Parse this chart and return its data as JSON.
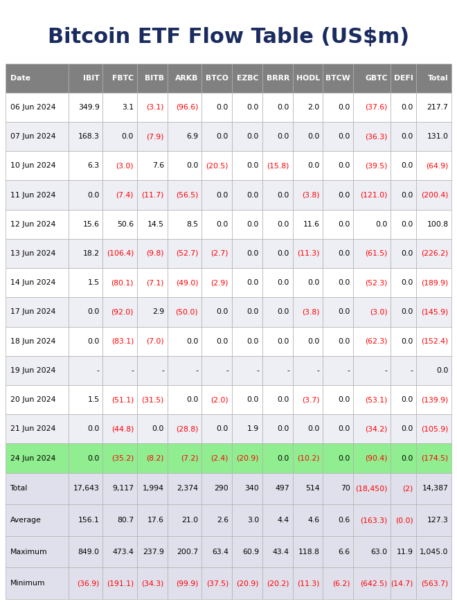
{
  "title": "Bitcoin ETF Flow Table (US$m)",
  "columns": [
    "Date",
    "IBIT",
    "FBTC",
    "BITB",
    "ARKB",
    "BTCO",
    "EZBC",
    "BRRR",
    "HODL",
    "BTCW",
    "GBTC",
    "DEFI",
    "Total"
  ],
  "rows": [
    [
      "06 Jun 2024",
      "349.9",
      "3.1",
      "(3.1)",
      "(96.6)",
      "0.0",
      "0.0",
      "0.0",
      "2.0",
      "0.0",
      "(37.6)",
      "0.0",
      "217.7"
    ],
    [
      "07 Jun 2024",
      "168.3",
      "0.0",
      "(7.9)",
      "6.9",
      "0.0",
      "0.0",
      "0.0",
      "0.0",
      "0.0",
      "(36.3)",
      "0.0",
      "131.0"
    ],
    [
      "10 Jun 2024",
      "6.3",
      "(3.0)",
      "7.6",
      "0.0",
      "(20.5)",
      "0.0",
      "(15.8)",
      "0.0",
      "0.0",
      "(39.5)",
      "0.0",
      "(64.9)"
    ],
    [
      "11 Jun 2024",
      "0.0",
      "(7.4)",
      "(11.7)",
      "(56.5)",
      "0.0",
      "0.0",
      "0.0",
      "(3.8)",
      "0.0",
      "(121.0)",
      "0.0",
      "(200.4)"
    ],
    [
      "12 Jun 2024",
      "15.6",
      "50.6",
      "14.5",
      "8.5",
      "0.0",
      "0.0",
      "0.0",
      "11.6",
      "0.0",
      "0.0",
      "0.0",
      "100.8"
    ],
    [
      "13 Jun 2024",
      "18.2",
      "(106.4)",
      "(9.8)",
      "(52.7)",
      "(2.7)",
      "0.0",
      "0.0",
      "(11.3)",
      "0.0",
      "(61.5)",
      "0.0",
      "(226.2)"
    ],
    [
      "14 Jun 2024",
      "1.5",
      "(80.1)",
      "(7.1)",
      "(49.0)",
      "(2.9)",
      "0.0",
      "0.0",
      "0.0",
      "0.0",
      "(52.3)",
      "0.0",
      "(189.9)"
    ],
    [
      "17 Jun 2024",
      "0.0",
      "(92.0)",
      "2.9",
      "(50.0)",
      "0.0",
      "0.0",
      "0.0",
      "(3.8)",
      "0.0",
      "(3.0)",
      "0.0",
      "(145.9)"
    ],
    [
      "18 Jun 2024",
      "0.0",
      "(83.1)",
      "(7.0)",
      "0.0",
      "0.0",
      "0.0",
      "0.0",
      "0.0",
      "0.0",
      "(62.3)",
      "0.0",
      "(152.4)"
    ],
    [
      "19 Jun 2024",
      "-",
      "-",
      "-",
      "-",
      "-",
      "-",
      "-",
      "-",
      "-",
      "-",
      "-",
      "0.0"
    ],
    [
      "20 Jun 2024",
      "1.5",
      "(51.1)",
      "(31.5)",
      "0.0",
      "(2.0)",
      "0.0",
      "0.0",
      "(3.7)",
      "0.0",
      "(53.1)",
      "0.0",
      "(139.9)"
    ],
    [
      "21 Jun 2024",
      "0.0",
      "(44.8)",
      "0.0",
      "(28.8)",
      "0.0",
      "1.9",
      "0.0",
      "0.0",
      "0.0",
      "(34.2)",
      "0.0",
      "(105.9)"
    ],
    [
      "24 Jun 2024",
      "0.0",
      "(35.2)",
      "(8.2)",
      "(7.2)",
      "(2.4)",
      "(20.9)",
      "0.0",
      "(10.2)",
      "0.0",
      "(90.4)",
      "0.0",
      "(174.5)"
    ]
  ],
  "summary_rows": [
    [
      "Total",
      "17,643",
      "9,117",
      "1,994",
      "2,374",
      "290",
      "340",
      "497",
      "514",
      "70",
      "(18,450)",
      "(2)",
      "14,387"
    ],
    [
      "Average",
      "156.1",
      "80.7",
      "17.6",
      "21.0",
      "2.6",
      "3.0",
      "4.4",
      "4.6",
      "0.6",
      "(163.3)",
      "(0.0)",
      "127.3"
    ],
    [
      "Maximum",
      "849.0",
      "473.4",
      "237.9",
      "200.7",
      "63.4",
      "60.9",
      "43.4",
      "118.8",
      "6.6",
      "63.0",
      "11.9",
      "1,045.0"
    ],
    [
      "Minimum",
      "(36.9)",
      "(191.1)",
      "(34.3)",
      "(99.9)",
      "(37.5)",
      "(20.9)",
      "(20.2)",
      "(11.3)",
      "(6.2)",
      "(642.5)",
      "(14.7)",
      "(563.7)"
    ]
  ],
  "header_bg": "#808080",
  "header_fg": "#ffffff",
  "row_bg_light": "#eeeef5",
  "row_bg_white": "#ffffff",
  "highlight_row_bg": "#90ee90",
  "summary_bg": "#e0e0ec",
  "negative_color": "#ff0000",
  "positive_color": "#000000",
  "title_color": "#1a2b5f",
  "grid_color": "#b0b0b0",
  "col_widths": [
    1.35,
    0.73,
    0.73,
    0.65,
    0.73,
    0.65,
    0.65,
    0.65,
    0.65,
    0.65,
    0.8,
    0.55,
    0.75
  ],
  "title_fontsize": 22,
  "header_fontsize": 7.8,
  "cell_fontsize": 7.8
}
